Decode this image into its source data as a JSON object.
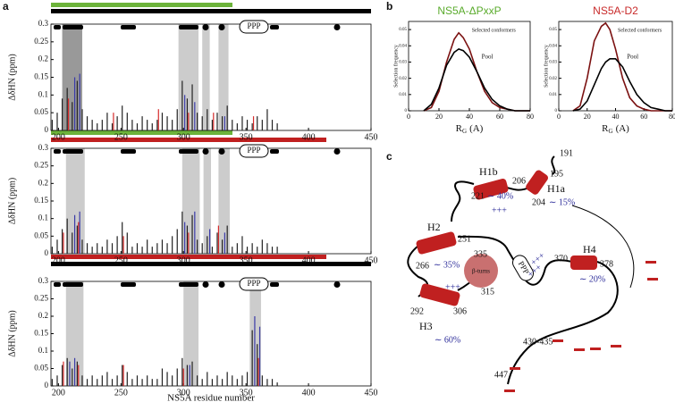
{
  "panel_labels": [
    "a",
    "b",
    "c"
  ],
  "chart_data": [
    {
      "type": "bar",
      "ylabel": "ΔδHN (ppm)",
      "annotation": "PPP",
      "xlim": [
        194,
        450
      ],
      "xticks": [
        200,
        250,
        300,
        350,
        400,
        450
      ],
      "ylim": [
        0,
        0.3
      ],
      "yticks": [
        0,
        0.05,
        0.1,
        0.15,
        0.2,
        0.25,
        0.3
      ],
      "shaded": [
        [
          203,
          219
        ],
        [
          296,
          312
        ],
        [
          315,
          321
        ],
        [
          328,
          336
        ]
      ],
      "x": [
        196,
        200,
        204,
        208,
        212,
        216,
        220,
        224,
        228,
        232,
        236,
        240,
        244,
        248,
        252,
        256,
        260,
        264,
        268,
        272,
        276,
        280,
        284,
        288,
        292,
        296,
        300,
        304,
        308,
        312,
        316,
        320,
        324,
        328,
        332,
        336,
        340,
        344,
        348,
        352,
        356,
        360,
        364,
        368,
        372,
        376
      ],
      "series": [
        {
          "color": "#222222",
          "values": [
            0.03,
            0.05,
            0.09,
            0.12,
            0.08,
            0.14,
            0.06,
            0.04,
            0.03,
            0.02,
            0.03,
            0.05,
            0.02,
            0.04,
            0.07,
            0.05,
            0.03,
            0.02,
            0.04,
            0.03,
            0.02,
            0.03,
            0.05,
            0.04,
            0.03,
            0.06,
            0.14,
            0.09,
            0.13,
            0.05,
            0.04,
            0.06,
            0.03,
            0.05,
            0.04,
            0.07,
            0.03,
            0.02,
            0.04,
            0.03,
            0.02,
            0.04,
            0.03,
            0.06,
            0.03,
            0.02
          ]
        },
        {
          "color": "#d62a2a",
          "values": [
            null,
            null,
            null,
            0.09,
            null,
            null,
            null,
            null,
            null,
            null,
            null,
            null,
            0.05,
            null,
            null,
            null,
            null,
            null,
            null,
            null,
            null,
            0.06,
            null,
            null,
            null,
            null,
            null,
            0.05,
            null,
            null,
            null,
            null,
            0.05,
            null,
            null,
            null,
            null,
            null,
            null,
            null,
            0.04,
            null,
            null,
            null,
            null,
            null
          ]
        },
        {
          "color": "#3a3aa8",
          "values": [
            null,
            null,
            null,
            null,
            0.15,
            0.16,
            null,
            null,
            null,
            null,
            null,
            null,
            null,
            null,
            null,
            null,
            null,
            null,
            null,
            null,
            null,
            null,
            null,
            null,
            null,
            null,
            0.1,
            null,
            0.08,
            null,
            null,
            null,
            null,
            null,
            0.04,
            null,
            null,
            null,
            null,
            null,
            null,
            null,
            null,
            null,
            null,
            null
          ]
        }
      ]
    },
    {
      "type": "bar",
      "ylabel": "ΔδHN (ppm)",
      "annotation": "PPP",
      "xlim": [
        194,
        450
      ],
      "xticks": [
        200,
        250,
        300,
        350,
        400,
        450
      ],
      "ylim": [
        0,
        0.3
      ],
      "yticks": [
        0,
        0.05,
        0.1,
        0.15,
        0.2,
        0.25,
        0.3
      ],
      "shaded": [
        [
          206,
          221
        ],
        [
          299,
          313
        ],
        [
          316,
          322
        ],
        [
          328,
          337
        ]
      ],
      "x": [
        196,
        200,
        204,
        208,
        212,
        216,
        220,
        224,
        228,
        232,
        236,
        240,
        244,
        248,
        252,
        256,
        260,
        264,
        268,
        272,
        276,
        280,
        284,
        288,
        292,
        296,
        300,
        304,
        308,
        312,
        316,
        320,
        324,
        328,
        332,
        336,
        340,
        344,
        348,
        352,
        356,
        360,
        364,
        368,
        372,
        376
      ],
      "series": [
        {
          "color": "#222222",
          "values": [
            0.02,
            0.04,
            0.07,
            0.1,
            0.06,
            0.08,
            0.04,
            0.03,
            0.02,
            0.03,
            0.02,
            0.04,
            0.03,
            0.05,
            0.09,
            0.06,
            0.02,
            0.03,
            0.02,
            0.04,
            0.02,
            0.03,
            0.04,
            0.03,
            0.05,
            0.07,
            0.12,
            0.08,
            0.11,
            0.04,
            0.03,
            0.05,
            0.02,
            0.06,
            0.04,
            0.08,
            0.02,
            0.03,
            0.05,
            0.02,
            0.03,
            0.02,
            0.04,
            0.03,
            0.02,
            0.02
          ]
        },
        {
          "color": "#d62a2a",
          "values": [
            null,
            null,
            0.06,
            null,
            null,
            0.09,
            null,
            null,
            null,
            null,
            null,
            null,
            null,
            null,
            0.05,
            null,
            null,
            null,
            null,
            null,
            null,
            null,
            null,
            null,
            null,
            null,
            null,
            0.06,
            null,
            null,
            null,
            null,
            null,
            0.08,
            null,
            null,
            null,
            null,
            null,
            null,
            null,
            null,
            null,
            null,
            null,
            null
          ]
        },
        {
          "color": "#3a3aa8",
          "values": [
            null,
            null,
            null,
            null,
            0.11,
            0.12,
            null,
            null,
            null,
            null,
            null,
            null,
            null,
            null,
            null,
            null,
            null,
            null,
            null,
            null,
            null,
            null,
            null,
            null,
            null,
            null,
            0.09,
            null,
            0.12,
            null,
            null,
            0.07,
            null,
            null,
            0.06,
            null,
            null,
            null,
            null,
            null,
            null,
            null,
            null,
            null,
            null,
            null
          ]
        }
      ]
    },
    {
      "type": "bar",
      "ylabel": "ΔδHN (ppm)",
      "annotation": "PPP",
      "xlabel": "NS5A residue number",
      "xlim": [
        194,
        450
      ],
      "xticks": [
        200,
        250,
        300,
        350,
        400,
        450
      ],
      "ylim": [
        0,
        0.3
      ],
      "yticks": [
        0,
        0.05,
        0.1,
        0.15,
        0.2,
        0.25,
        0.3
      ],
      "shaded": [
        [
          206,
          220
        ],
        [
          300,
          312
        ],
        [
          353,
          362
        ]
      ],
      "x": [
        196,
        200,
        204,
        208,
        212,
        216,
        220,
        224,
        228,
        232,
        236,
        240,
        244,
        248,
        252,
        256,
        260,
        264,
        268,
        272,
        276,
        280,
        284,
        288,
        292,
        296,
        300,
        304,
        308,
        312,
        316,
        320,
        324,
        328,
        332,
        336,
        340,
        344,
        348,
        352,
        356,
        360,
        364,
        368,
        372,
        376
      ],
      "series": [
        {
          "color": "#222222",
          "values": [
            0.02,
            0.03,
            0.06,
            0.08,
            0.05,
            0.07,
            0.03,
            0.02,
            0.03,
            0.02,
            0.03,
            0.04,
            0.02,
            0.03,
            0.06,
            0.04,
            0.02,
            0.03,
            0.02,
            0.03,
            0.02,
            0.02,
            0.05,
            0.04,
            0.03,
            0.05,
            0.08,
            0.06,
            0.07,
            0.03,
            0.02,
            0.04,
            0.02,
            0.03,
            0.02,
            0.04,
            0.03,
            0.02,
            0.03,
            0.04,
            0.16,
            0.12,
            0.03,
            0.02,
            0.02,
            0.01
          ]
        },
        {
          "color": "#d62a2a",
          "values": [
            null,
            null,
            0.07,
            null,
            null,
            0.06,
            null,
            null,
            null,
            null,
            null,
            null,
            null,
            null,
            0.06,
            null,
            null,
            null,
            null,
            null,
            null,
            null,
            null,
            null,
            null,
            null,
            0.05,
            null,
            null,
            null,
            null,
            null,
            null,
            null,
            null,
            null,
            null,
            null,
            null,
            null,
            null,
            0.08,
            null,
            null,
            null,
            null
          ]
        },
        {
          "color": "#3a3aa8",
          "values": [
            null,
            null,
            null,
            0.07,
            0.08,
            null,
            null,
            null,
            null,
            null,
            null,
            null,
            null,
            null,
            null,
            null,
            null,
            null,
            null,
            null,
            null,
            null,
            null,
            null,
            null,
            null,
            null,
            0.06,
            null,
            null,
            null,
            null,
            null,
            null,
            null,
            null,
            null,
            null,
            null,
            null,
            0.2,
            0.17,
            null,
            null,
            null,
            null
          ]
        }
      ]
    },
    {
      "type": "line",
      "title": "NS5A-ΔPxxP",
      "title_color": "#5aab2c",
      "ylabel": "Selection frequency",
      "xlabel": {
        "symbol": "R",
        "subscript": "G",
        "unit": "(A)"
      },
      "xlim": [
        0,
        80
      ],
      "xticks": [
        0,
        20,
        40,
        60,
        80
      ],
      "ylim": [
        0,
        0.055
      ],
      "yticks": [
        0,
        0.01,
        0.02,
        0.03,
        0.04,
        0.05
      ],
      "x": [
        10,
        15,
        20,
        25,
        30,
        33,
        36,
        40,
        45,
        50,
        55,
        60,
        65,
        70,
        75,
        80
      ],
      "series": [
        {
          "name": "Selected conformers",
          "color": "#7b1111",
          "values": [
            0,
            0.002,
            0.012,
            0.03,
            0.044,
            0.048,
            0.045,
            0.038,
            0.024,
            0.012,
            0.005,
            0.002,
            0.001,
            0,
            0,
            0
          ]
        },
        {
          "name": "Pool",
          "color": "#000000",
          "values": [
            0,
            0.004,
            0.014,
            0.028,
            0.036,
            0.038,
            0.037,
            0.033,
            0.024,
            0.014,
            0.007,
            0.003,
            0.001,
            0,
            0,
            0
          ]
        }
      ]
    },
    {
      "type": "line",
      "title": "NS5A-D2",
      "title_color": "#c82a2a",
      "ylabel": "Selection frequency",
      "xlabel": {
        "symbol": "R",
        "subscript": "G",
        "unit": "(A)"
      },
      "xlim": [
        0,
        80
      ],
      "xticks": [
        0,
        20,
        40,
        60,
        80
      ],
      "ylim": [
        0,
        0.055
      ],
      "yticks": [
        0,
        0.01,
        0.02,
        0.03,
        0.04,
        0.05
      ],
      "x": [
        10,
        15,
        20,
        25,
        30,
        33,
        36,
        40,
        45,
        50,
        55,
        60,
        65,
        70,
        75,
        80
      ],
      "series": [
        {
          "name": "Selected conformers",
          "color": "#7b1111",
          "values": [
            0,
            0.003,
            0.02,
            0.043,
            0.052,
            0.054,
            0.05,
            0.038,
            0.02,
            0.008,
            0.003,
            0.001,
            0,
            0,
            0,
            0
          ]
        },
        {
          "name": "Pool",
          "color": "#000000",
          "values": [
            0,
            0.001,
            0.006,
            0.016,
            0.026,
            0.03,
            0.032,
            0.032,
            0.027,
            0.018,
            0.01,
            0.005,
            0.002,
            0.001,
            0,
            0
          ]
        }
      ]
    }
  ],
  "diagram": {
    "labels": [
      "191",
      "195",
      "206",
      "H1b",
      "221",
      "∼ 40%",
      "H1a",
      "204",
      "∼ 15%",
      "H2",
      "251",
      "266",
      "∼ 35%",
      "H3",
      "292",
      "306",
      "∼ 60%",
      "335",
      "β-turns",
      "315",
      "PPP",
      "H4",
      "370",
      "378",
      "∼ 20%",
      "430-435",
      "447",
      "+++",
      "+++",
      "+++",
      "+++"
    ]
  }
}
